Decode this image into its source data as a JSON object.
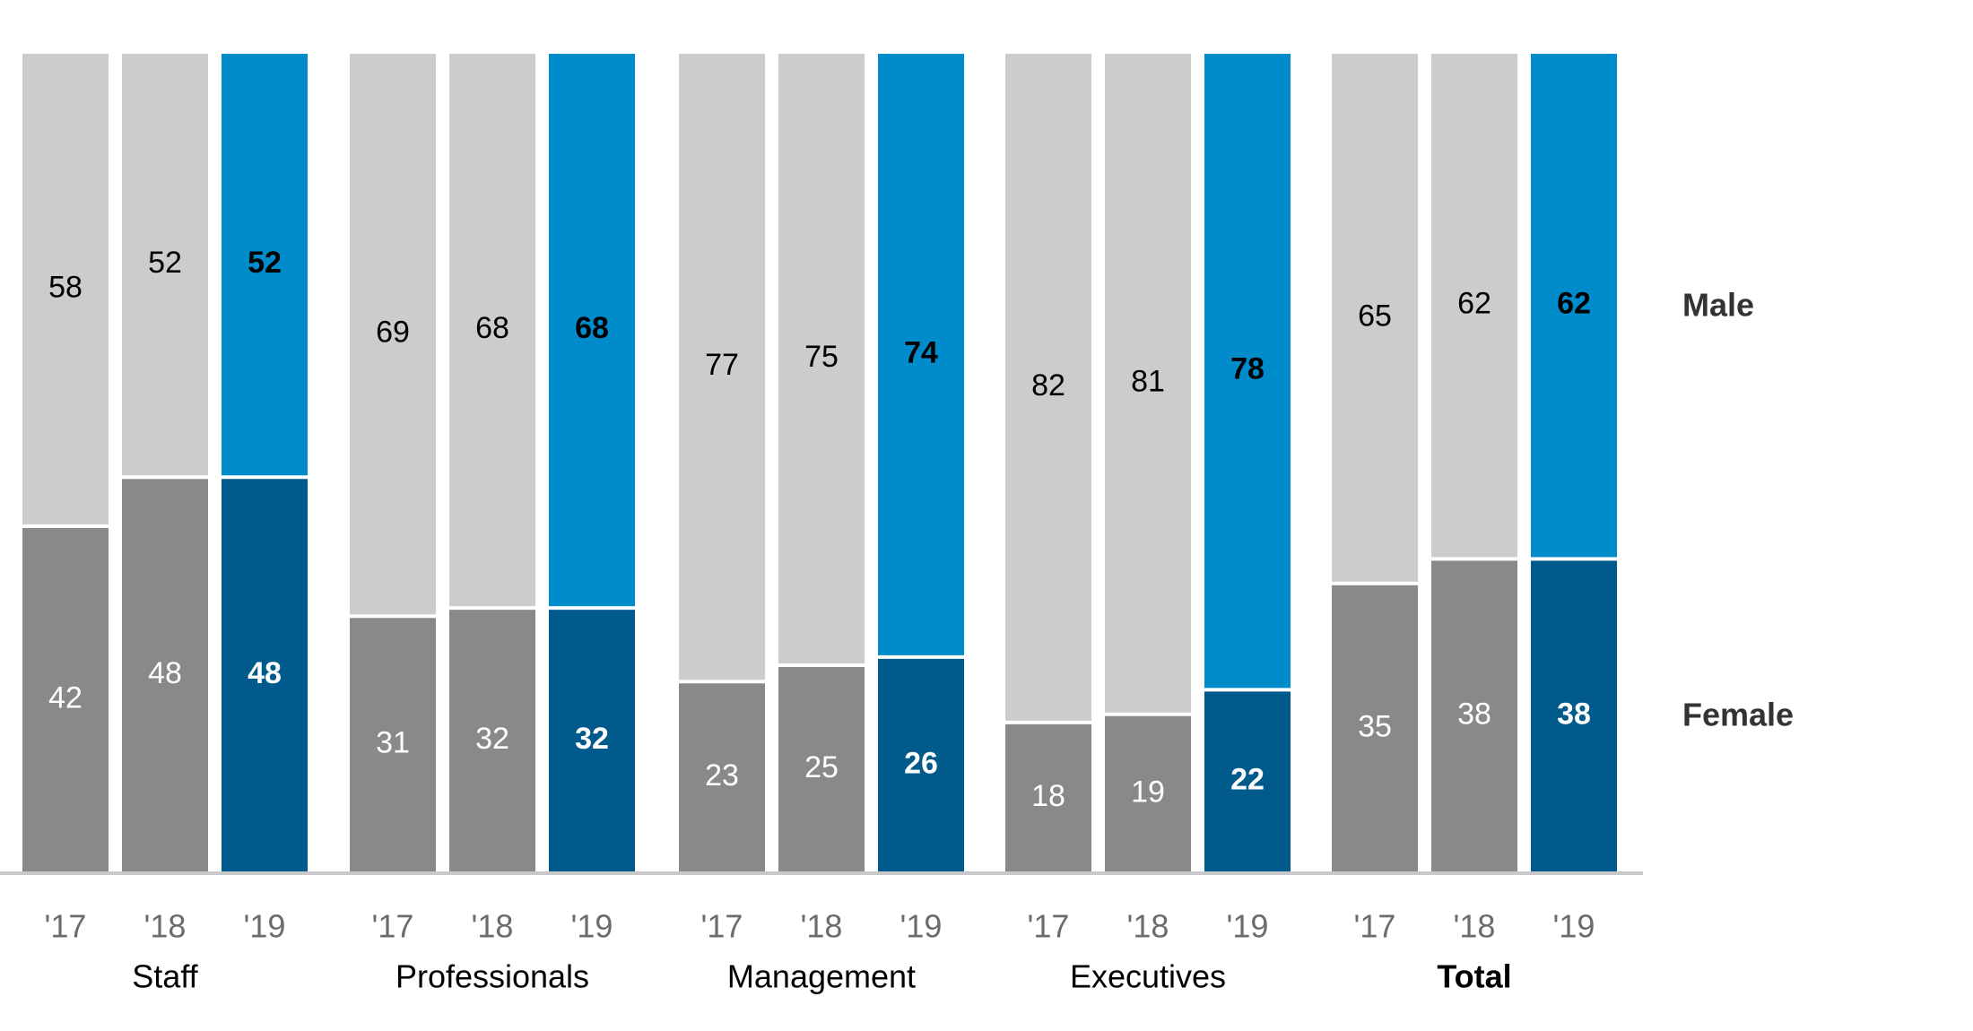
{
  "chart_data": {
    "type": "bar",
    "stacked": true,
    "unit": "%",
    "ylim": [
      0,
      100
    ],
    "series_names": [
      "Female",
      "Male"
    ],
    "groups": [
      {
        "name": "Staff",
        "bold": false,
        "years": [
          "'17",
          "'18",
          "'19"
        ],
        "female": [
          42,
          48,
          48
        ],
        "male": [
          58,
          52,
          52
        ]
      },
      {
        "name": "Professionals",
        "bold": false,
        "years": [
          "'17",
          "'18",
          "'19"
        ],
        "female": [
          31,
          32,
          32
        ],
        "male": [
          69,
          68,
          68
        ]
      },
      {
        "name": "Management",
        "bold": false,
        "years": [
          "'17",
          "'18",
          "'19"
        ],
        "female": [
          23,
          25,
          26
        ],
        "male": [
          77,
          75,
          74
        ]
      },
      {
        "name": "Executives",
        "bold": false,
        "years": [
          "'17",
          "'18",
          "'19"
        ],
        "female": [
          18,
          19,
          22
        ],
        "male": [
          82,
          81,
          78
        ]
      },
      {
        "name": "Total",
        "bold": true,
        "years": [
          "'17",
          "'18",
          "'19"
        ],
        "female": [
          35,
          38,
          38
        ],
        "male": [
          65,
          62,
          62
        ]
      }
    ],
    "colors": {
      "female_past": "#898989",
      "male_past": "#cccccc",
      "female_current": "#005a8c",
      "male_current": "#008ccb",
      "baseline": "#c8c8c8",
      "year_text": "#6b6b6b",
      "legend_text": "#333333"
    }
  }
}
